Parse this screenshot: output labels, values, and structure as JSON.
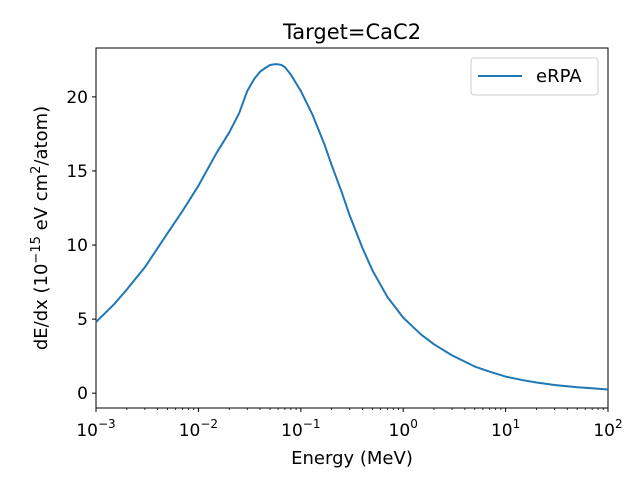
{
  "chart_data": {
    "type": "line",
    "title": "Target=CaC2",
    "xlabel": "Energy (MeV)",
    "ylabel": {
      "prefix": "dE/dx (10",
      "exp1": "−15",
      "mid": " eV cm",
      "exp2": "2",
      "suffix": "/atom)"
    },
    "xscale": "log",
    "xlim": [
      0.001,
      100
    ],
    "ylim": [
      -1,
      23.3
    ],
    "x_ticks": [
      {
        "base": "10",
        "exp": "−3",
        "value": 0.001
      },
      {
        "base": "10",
        "exp": "−2",
        "value": 0.01
      },
      {
        "base": "10",
        "exp": "−1",
        "value": 0.1
      },
      {
        "base": "10",
        "exp": "0",
        "value": 1
      },
      {
        "base": "10",
        "exp": "1",
        "value": 10
      },
      {
        "base": "10",
        "exp": "2",
        "value": 100
      }
    ],
    "y_ticks": [
      {
        "label": "0",
        "value": 0
      },
      {
        "label": "5",
        "value": 5
      },
      {
        "label": "10",
        "value": 10
      },
      {
        "label": "15",
        "value": 15
      },
      {
        "label": "20",
        "value": 20
      }
    ],
    "legend": {
      "placement": "top-right"
    },
    "grid": false,
    "series": [
      {
        "name": "eRPA",
        "color": "#1f77b4",
        "x": [
          0.001,
          0.0015,
          0.002,
          0.003,
          0.005,
          0.007,
          0.01,
          0.015,
          0.02,
          0.025,
          0.03,
          0.035,
          0.04,
          0.045,
          0.05,
          0.055,
          0.06,
          0.065,
          0.07,
          0.08,
          0.1,
          0.13,
          0.17,
          0.2,
          0.25,
          0.3,
          0.4,
          0.5,
          0.7,
          1,
          1.5,
          2,
          3,
          5,
          7,
          10,
          15,
          20,
          30,
          50,
          70,
          100
        ],
        "y": [
          4.8,
          6.0,
          7.0,
          8.5,
          10.8,
          12.3,
          14.0,
          16.2,
          17.6,
          18.9,
          20.4,
          21.2,
          21.7,
          21.95,
          22.15,
          22.2,
          22.2,
          22.15,
          22.0,
          21.5,
          20.4,
          18.8,
          16.8,
          15.4,
          13.6,
          12.0,
          9.8,
          8.3,
          6.5,
          5.1,
          3.95,
          3.3,
          2.55,
          1.8,
          1.45,
          1.12,
          0.87,
          0.72,
          0.55,
          0.4,
          0.33,
          0.25
        ]
      }
    ]
  }
}
